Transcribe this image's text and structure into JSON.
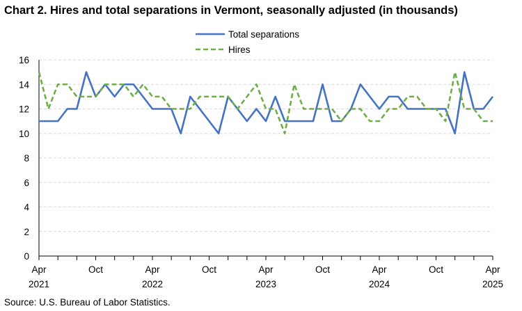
{
  "title": "Chart 2. Hires and total separations in Vermont, seasonally adjusted (in thousands)",
  "source": "Source: U.S. Bureau of Labor Statistics.",
  "chart_data": {
    "type": "line",
    "title": "Chart 2. Hires and total separations in Vermont, seasonally adjusted (in thousands)",
    "xlabel": "",
    "ylabel": "",
    "ylim": [
      0,
      16
    ],
    "yticks": [
      "0",
      "2",
      "4",
      "6",
      "8",
      "10",
      "12",
      "14",
      "16"
    ],
    "xticks": [
      {
        "month": "Apr",
        "year": "2021",
        "index": 0
      },
      {
        "month": "Oct",
        "year": "",
        "index": 6
      },
      {
        "month": "Apr",
        "year": "2022",
        "index": 12
      },
      {
        "month": "Oct",
        "year": "",
        "index": 18
      },
      {
        "month": "Apr",
        "year": "2023",
        "index": 24
      },
      {
        "month": "Oct",
        "year": "",
        "index": 30
      },
      {
        "month": "Apr",
        "year": "2024",
        "index": 36
      },
      {
        "month": "Oct",
        "year": "",
        "index": 42
      },
      {
        "month": "Apr",
        "year": "2025",
        "index": 48
      }
    ],
    "x": [
      "2021-04",
      "2021-05",
      "2021-06",
      "2021-07",
      "2021-08",
      "2021-09",
      "2021-10",
      "2021-11",
      "2021-12",
      "2022-01",
      "2022-02",
      "2022-03",
      "2022-04",
      "2022-05",
      "2022-06",
      "2022-07",
      "2022-08",
      "2022-09",
      "2022-10",
      "2022-11",
      "2022-12",
      "2023-01",
      "2023-02",
      "2023-03",
      "2023-04",
      "2023-05",
      "2023-06",
      "2023-07",
      "2023-08",
      "2023-09",
      "2023-10",
      "2023-11",
      "2023-12",
      "2024-01",
      "2024-02",
      "2024-03",
      "2024-04",
      "2024-05",
      "2024-06",
      "2024-07",
      "2024-08",
      "2024-09",
      "2024-10",
      "2024-11",
      "2024-12",
      "2025-01",
      "2025-02",
      "2025-03",
      "2025-04"
    ],
    "grid": true,
    "legend_position": "top-center",
    "series": [
      {
        "name": "Total separations",
        "color": "#4472C4",
        "style": "solid",
        "values": [
          11,
          11,
          11,
          12,
          12,
          15,
          13,
          14,
          13,
          14,
          14,
          13,
          12,
          12,
          12,
          10,
          13,
          12,
          11,
          10,
          13,
          12,
          11,
          12,
          11,
          13,
          11,
          11,
          11,
          11,
          14,
          11,
          11,
          12,
          14,
          13,
          12,
          13,
          13,
          12,
          12,
          12,
          12,
          12,
          10,
          15,
          12,
          12,
          13
        ]
      },
      {
        "name": "Hires",
        "color": "#70AD47",
        "style": "dashed",
        "values": [
          15,
          12,
          14,
          14,
          13,
          13,
          13,
          14,
          14,
          14,
          13,
          14,
          13,
          13,
          12,
          12,
          12,
          13,
          13,
          13,
          13,
          12,
          13,
          14,
          12,
          12,
          10,
          14,
          12,
          12,
          12,
          12,
          11,
          12,
          12,
          11,
          11,
          12,
          12,
          13,
          13,
          12,
          12,
          11,
          15,
          12,
          12,
          11,
          11
        ]
      }
    ]
  }
}
